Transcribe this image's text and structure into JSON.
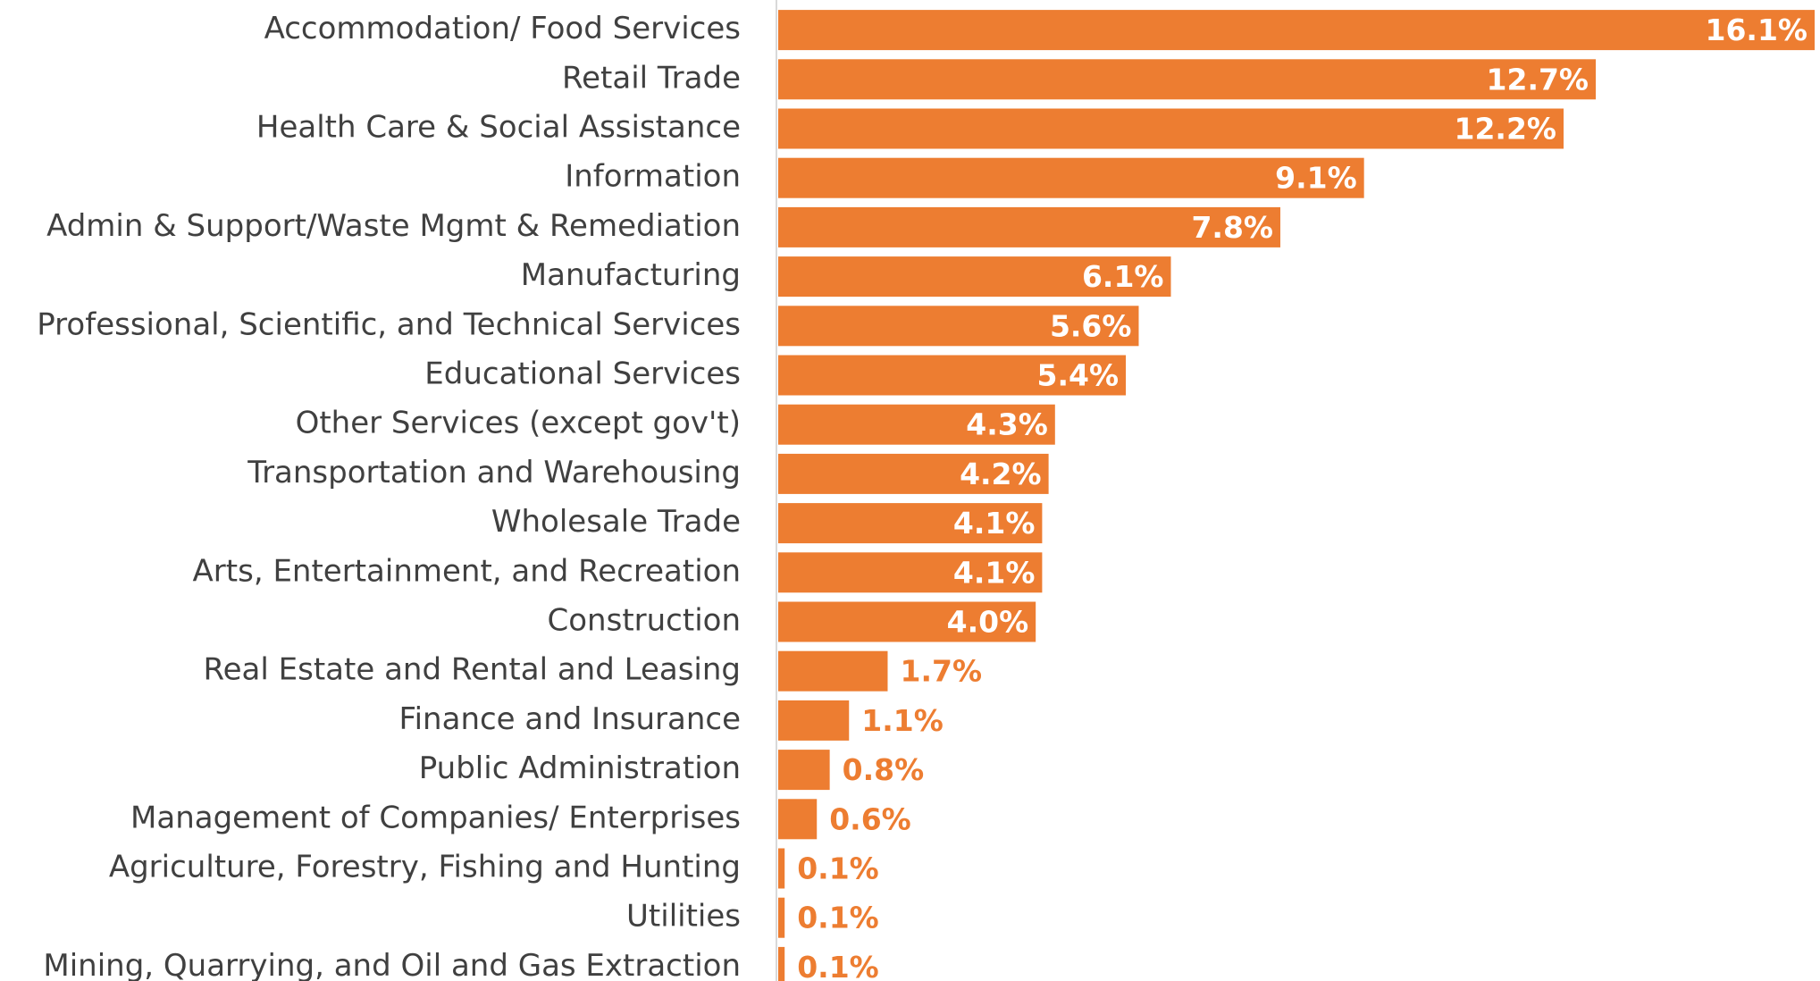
{
  "chart_data": {
    "type": "barh",
    "categories": [
      "Accommodation/ Food Services",
      "Retail Trade",
      "Health Care & Social Assistance",
      "Information",
      "Admin & Support/Waste Mgmt & Remediation",
      "Manufacturing",
      "Professional, Scientific, and Technical Services",
      "Educational Services",
      "Other Services (except gov't)",
      "Transportation and Warehousing",
      "Wholesale Trade",
      "Arts, Entertainment, and Recreation",
      "Construction",
      "Real Estate and Rental and Leasing",
      "Finance and Insurance",
      "Public Administration",
      "Management of Companies/ Enterprises",
      "Agriculture, Forestry, Fishing and Hunting",
      "Utilities",
      "Mining, Quarrying, and Oil and Gas Extraction"
    ],
    "values": [
      16.1,
      12.7,
      12.2,
      9.1,
      7.8,
      6.1,
      5.6,
      5.4,
      4.3,
      4.2,
      4.1,
      4.1,
      4.0,
      1.7,
      1.1,
      0.8,
      0.6,
      0.1,
      0.1,
      0.1
    ],
    "value_labels": [
      "16.1%",
      "12.7%",
      "12.2%",
      "9.1%",
      "7.8%",
      "6.1%",
      "5.6%",
      "5.4%",
      "4.3%",
      "4.2%",
      "4.1%",
      "4.1%",
      "4.0%",
      "1.7%",
      "1.1%",
      "0.8%",
      "0.6%",
      "0.1%",
      "0.1%",
      "0.1%"
    ],
    "color": "#ED7D31"
  }
}
